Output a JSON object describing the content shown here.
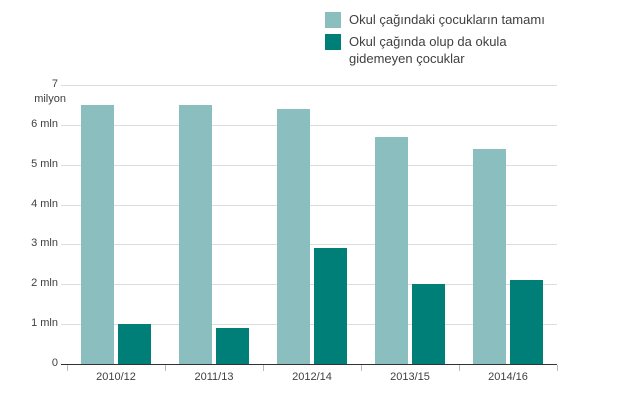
{
  "legend": {
    "items": [
      {
        "label": "Okul çağındaki çocukların tamamı",
        "color": "#8bbfbf"
      },
      {
        "label": "Okul çağında olup da okula\ngidemeyen çocuklar",
        "color": "#007f78"
      }
    ]
  },
  "axis": {
    "y_unit": "milyon",
    "y_ticks": [
      "0",
      "1 mln",
      "2 mln",
      "3 mln",
      "4 mln",
      "5 mln",
      "6 mln",
      "7"
    ]
  },
  "chart_data": {
    "type": "bar",
    "title": "",
    "xlabel": "",
    "ylabel": "milyon",
    "ylim": [
      0,
      7
    ],
    "grid": true,
    "legend_position": "top-right",
    "categories": [
      "2010/12",
      "2011/13",
      "2012/14",
      "2013/15",
      "2014/16"
    ],
    "series": [
      {
        "name": "Okul çağındaki çocukların tamamı",
        "color": "#8bbfbf",
        "values": [
          6.5,
          6.5,
          6.4,
          5.7,
          5.4
        ]
      },
      {
        "name": "Okul çağında olup da okula gidemeyen çocuklar",
        "color": "#007f78",
        "values": [
          1.0,
          0.9,
          2.9,
          2.0,
          2.1
        ]
      }
    ]
  }
}
